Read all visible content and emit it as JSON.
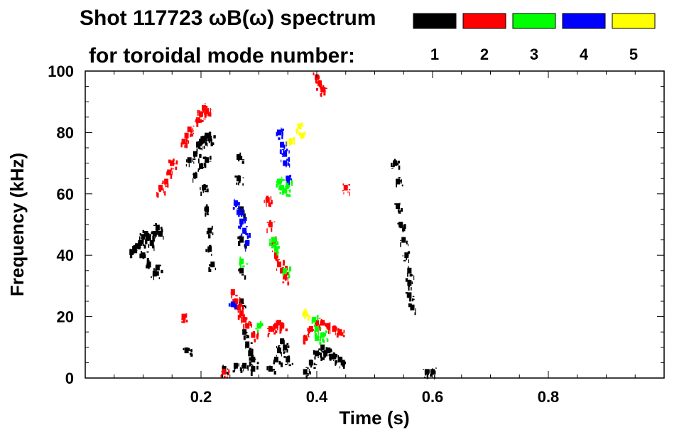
{
  "chart_data": {
    "type": "heatmap",
    "title": "Shot 117723 ωB(ω) spectrum",
    "subtitle": "for toroidal mode number:",
    "xlabel": "Time (s)",
    "ylabel": "Frequency (kHz)",
    "xlim": [
      0.0,
      1.0
    ],
    "ylim": [
      0,
      100
    ],
    "x_ticks": [
      0.2,
      0.4,
      0.6,
      0.8
    ],
    "x_tick_labels": [
      "0.2",
      "0.4",
      "0.6",
      "0.8"
    ],
    "y_ticks": [
      0,
      20,
      40,
      60,
      80,
      100
    ],
    "y_tick_labels": [
      "0",
      "20",
      "40",
      "60",
      "80",
      "100"
    ],
    "legend_position": "top-right",
    "legend": [
      {
        "label": "1",
        "color": "#000000"
      },
      {
        "label": "2",
        "color": "#ff0000"
      },
      {
        "label": "3",
        "color": "#00ff00"
      },
      {
        "label": "4",
        "color": "#0000ff"
      },
      {
        "label": "5",
        "color": "#ffff00"
      }
    ],
    "series": [
      {
        "mode": "1",
        "color": "#000000",
        "points": [
          [
            0.08,
            41
          ],
          [
            0.085,
            42
          ],
          [
            0.09,
            43
          ],
          [
            0.095,
            44
          ],
          [
            0.1,
            46
          ],
          [
            0.105,
            47
          ],
          [
            0.11,
            46
          ],
          [
            0.115,
            44
          ],
          [
            0.12,
            47
          ],
          [
            0.125,
            49
          ],
          [
            0.13,
            47
          ],
          [
            0.1,
            40
          ],
          [
            0.11,
            37
          ],
          [
            0.12,
            34
          ],
          [
            0.125,
            36
          ],
          [
            0.175,
            9
          ],
          [
            0.18,
            71
          ],
          [
            0.19,
            73
          ],
          [
            0.195,
            76
          ],
          [
            0.2,
            77
          ],
          [
            0.205,
            78
          ],
          [
            0.21,
            79
          ],
          [
            0.215,
            78
          ],
          [
            0.19,
            66
          ],
          [
            0.2,
            69
          ],
          [
            0.21,
            71
          ],
          [
            0.205,
            62
          ],
          [
            0.21,
            55
          ],
          [
            0.215,
            48
          ],
          [
            0.215,
            42
          ],
          [
            0.22,
            37
          ],
          [
            0.24,
            3
          ],
          [
            0.26,
            4
          ],
          [
            0.275,
            4
          ],
          [
            0.29,
            3
          ],
          [
            0.265,
            72
          ],
          [
            0.265,
            65
          ],
          [
            0.27,
            55
          ],
          [
            0.27,
            45
          ],
          [
            0.27,
            35
          ],
          [
            0.27,
            25
          ],
          [
            0.275,
            15
          ],
          [
            0.28,
            11
          ],
          [
            0.285,
            8
          ],
          [
            0.29,
            6
          ],
          [
            0.32,
            3
          ],
          [
            0.33,
            6
          ],
          [
            0.335,
            9
          ],
          [
            0.34,
            12
          ],
          [
            0.345,
            10
          ],
          [
            0.35,
            6
          ],
          [
            0.38,
            2
          ],
          [
            0.39,
            5
          ],
          [
            0.4,
            8
          ],
          [
            0.41,
            10
          ],
          [
            0.415,
            8
          ],
          [
            0.42,
            9
          ],
          [
            0.425,
            7
          ],
          [
            0.43,
            7
          ],
          [
            0.44,
            6
          ],
          [
            0.445,
            5
          ],
          [
            0.535,
            70
          ],
          [
            0.54,
            64
          ],
          [
            0.54,
            56
          ],
          [
            0.545,
            50
          ],
          [
            0.55,
            45
          ],
          [
            0.555,
            40
          ],
          [
            0.56,
            35
          ],
          [
            0.56,
            31
          ],
          [
            0.56,
            27
          ],
          [
            0.565,
            23
          ],
          [
            0.59,
            2
          ],
          [
            0.6,
            2
          ]
        ]
      },
      {
        "mode": "2",
        "color": "#ff0000",
        "points": [
          [
            0.13,
            62
          ],
          [
            0.14,
            64
          ],
          [
            0.145,
            67
          ],
          [
            0.15,
            70
          ],
          [
            0.17,
            77
          ],
          [
            0.175,
            79
          ],
          [
            0.18,
            81
          ],
          [
            0.195,
            84
          ],
          [
            0.2,
            86
          ],
          [
            0.205,
            88
          ],
          [
            0.21,
            87
          ],
          [
            0.17,
            20
          ],
          [
            0.255,
            28
          ],
          [
            0.26,
            25
          ],
          [
            0.265,
            23
          ],
          [
            0.27,
            21
          ],
          [
            0.275,
            19
          ],
          [
            0.28,
            17
          ],
          [
            0.29,
            14
          ],
          [
            0.315,
            58
          ],
          [
            0.32,
            50
          ],
          [
            0.325,
            45
          ],
          [
            0.33,
            40
          ],
          [
            0.335,
            37
          ],
          [
            0.34,
            35
          ],
          [
            0.345,
            33
          ],
          [
            0.32,
            16
          ],
          [
            0.33,
            17
          ],
          [
            0.335,
            18
          ],
          [
            0.34,
            17
          ],
          [
            0.38,
            13
          ],
          [
            0.39,
            16
          ],
          [
            0.4,
            18
          ],
          [
            0.41,
            18
          ],
          [
            0.42,
            17
          ],
          [
            0.43,
            16
          ],
          [
            0.44,
            15
          ],
          [
            0.4,
            98
          ],
          [
            0.405,
            96
          ],
          [
            0.41,
            94
          ],
          [
            0.45,
            62
          ],
          [
            0.24,
            2
          ]
        ]
      },
      {
        "mode": "3",
        "color": "#00ff00",
        "points": [
          [
            0.27,
            38
          ],
          [
            0.325,
            45
          ],
          [
            0.33,
            42
          ],
          [
            0.345,
            35
          ],
          [
            0.335,
            64
          ],
          [
            0.34,
            62
          ],
          [
            0.345,
            61
          ],
          [
            0.35,
            63
          ],
          [
            0.395,
            19
          ],
          [
            0.4,
            16
          ],
          [
            0.4,
            13
          ],
          [
            0.41,
            14
          ],
          [
            0.3,
            17
          ]
        ]
      },
      {
        "mode": "4",
        "color": "#0000ff",
        "points": [
          [
            0.26,
            57
          ],
          [
            0.265,
            54
          ],
          [
            0.27,
            51
          ],
          [
            0.275,
            48
          ],
          [
            0.28,
            44
          ],
          [
            0.335,
            80
          ],
          [
            0.34,
            76
          ],
          [
            0.345,
            73
          ],
          [
            0.345,
            70
          ],
          [
            0.35,
            65
          ],
          [
            0.255,
            24
          ]
        ]
      },
      {
        "mode": "5",
        "color": "#ffff00",
        "points": [
          [
            0.355,
            77
          ],
          [
            0.37,
            82
          ],
          [
            0.375,
            79
          ],
          [
            0.38,
            21
          ]
        ]
      }
    ]
  }
}
